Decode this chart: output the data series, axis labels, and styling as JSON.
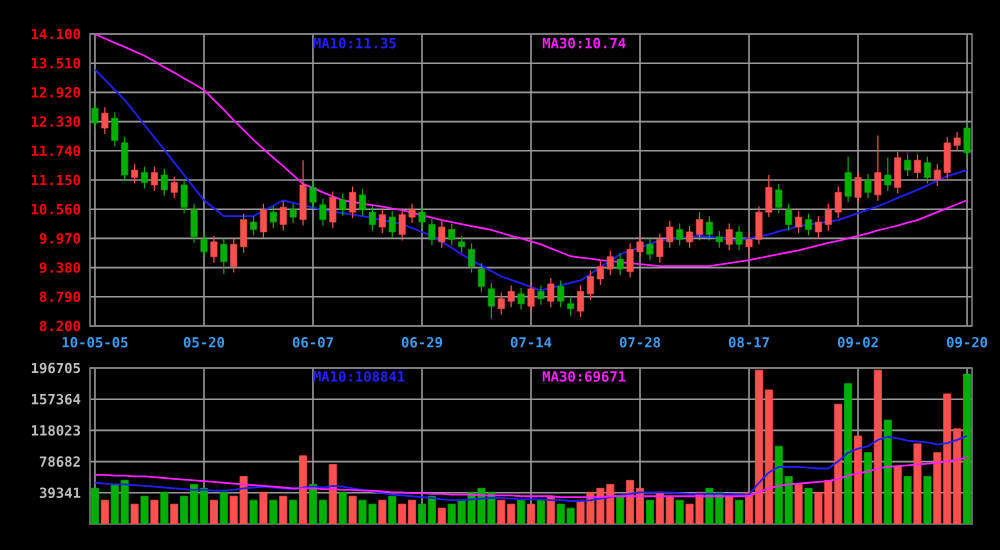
{
  "chart_data": [
    {
      "type": "candlestick",
      "categories": [
        "10-05-05",
        null,
        null,
        null,
        null,
        null,
        null,
        null,
        null,
        null,
        null,
        "05-20",
        null,
        null,
        null,
        null,
        null,
        null,
        null,
        null,
        null,
        null,
        "06-07",
        null,
        null,
        null,
        null,
        null,
        null,
        null,
        null,
        null,
        null,
        "06-29",
        null,
        null,
        null,
        null,
        null,
        null,
        null,
        null,
        null,
        null,
        "07-14",
        null,
        null,
        null,
        null,
        null,
        null,
        null,
        null,
        null,
        null,
        "07-28",
        null,
        null,
        null,
        null,
        null,
        null,
        null,
        null,
        null,
        null,
        "08-17",
        null,
        null,
        null,
        null,
        null,
        null,
        null,
        null,
        null,
        null,
        "09-02",
        null,
        null,
        null,
        null,
        null,
        null,
        null,
        null,
        null,
        null,
        "09-20"
      ],
      "ohlc": [
        [
          12.6,
          12.72,
          12.18,
          12.3
        ],
        [
          12.2,
          12.62,
          12.08,
          12.5
        ],
        [
          12.4,
          12.52,
          11.83,
          11.95
        ],
        [
          11.9,
          12.02,
          11.13,
          11.25
        ],
        [
          11.2,
          11.47,
          11.08,
          11.35
        ],
        [
          11.3,
          11.42,
          10.98,
          11.1
        ],
        [
          11.05,
          11.42,
          10.93,
          11.3
        ],
        [
          11.25,
          11.37,
          10.83,
          10.95
        ],
        [
          10.9,
          11.22,
          10.78,
          11.1
        ],
        [
          11.05,
          11.17,
          10.48,
          10.6
        ],
        [
          10.55,
          10.67,
          9.88,
          10.0
        ],
        [
          9.95,
          10.07,
          9.58,
          9.7
        ],
        [
          9.6,
          10.02,
          9.48,
          9.9
        ],
        [
          9.85,
          9.97,
          9.25,
          9.5
        ],
        [
          9.4,
          9.97,
          9.28,
          9.85
        ],
        [
          9.8,
          10.47,
          9.68,
          10.35
        ],
        [
          10.3,
          10.42,
          10.03,
          10.15
        ],
        [
          10.1,
          10.67,
          9.98,
          10.55
        ],
        [
          10.5,
          10.62,
          10.18,
          10.3
        ],
        [
          10.25,
          10.72,
          10.13,
          10.6
        ],
        [
          10.55,
          10.67,
          10.28,
          10.4
        ],
        [
          10.35,
          11.55,
          10.23,
          11.05
        ],
        [
          11.0,
          11.12,
          10.58,
          10.7
        ],
        [
          10.65,
          10.77,
          10.23,
          10.35
        ],
        [
          10.3,
          10.92,
          10.18,
          10.8
        ],
        [
          10.75,
          10.87,
          10.43,
          10.55
        ],
        [
          10.5,
          11.02,
          10.38,
          10.9
        ],
        [
          10.85,
          10.97,
          10.43,
          10.55
        ],
        [
          10.5,
          10.62,
          10.13,
          10.25
        ],
        [
          10.2,
          10.57,
          10.08,
          10.45
        ],
        [
          10.4,
          10.52,
          9.98,
          10.1
        ],
        [
          10.05,
          10.57,
          9.93,
          10.45
        ],
        [
          10.4,
          10.67,
          10.28,
          10.55
        ],
        [
          10.5,
          10.62,
          10.18,
          10.3
        ],
        [
          10.25,
          10.37,
          9.83,
          9.95
        ],
        [
          9.9,
          10.32,
          9.78,
          10.2
        ],
        [
          10.15,
          10.27,
          9.83,
          9.95
        ],
        [
          9.9,
          10.02,
          9.68,
          9.8
        ],
        [
          9.75,
          9.87,
          9.28,
          9.4
        ],
        [
          9.35,
          9.47,
          8.88,
          9.0
        ],
        [
          8.95,
          9.07,
          8.35,
          8.6
        ],
        [
          8.55,
          8.87,
          8.43,
          8.75
        ],
        [
          8.7,
          9.02,
          8.58,
          8.9
        ],
        [
          8.85,
          8.97,
          8.53,
          8.65
        ],
        [
          8.6,
          9.07,
          8.48,
          8.95
        ],
        [
          8.9,
          9.02,
          8.63,
          8.75
        ],
        [
          8.7,
          9.17,
          8.58,
          9.05
        ],
        [
          9.0,
          9.12,
          8.58,
          8.7
        ],
        [
          8.65,
          8.77,
          8.4,
          8.55
        ],
        [
          8.5,
          9.02,
          8.38,
          8.9
        ],
        [
          8.85,
          9.32,
          8.73,
          9.2
        ],
        [
          9.15,
          9.52,
          9.03,
          9.4
        ],
        [
          9.35,
          9.72,
          9.23,
          9.6
        ],
        [
          9.55,
          9.67,
          9.23,
          9.35
        ],
        [
          9.3,
          9.87,
          9.18,
          9.75
        ],
        [
          9.7,
          10.02,
          9.58,
          9.9
        ],
        [
          9.85,
          9.97,
          9.53,
          9.65
        ],
        [
          9.6,
          10.07,
          9.48,
          9.95
        ],
        [
          9.9,
          10.32,
          9.78,
          10.2
        ],
        [
          10.15,
          10.27,
          9.83,
          9.95
        ],
        [
          9.9,
          10.22,
          9.78,
          10.1
        ],
        [
          10.05,
          10.5,
          9.93,
          10.35
        ],
        [
          10.3,
          10.42,
          9.93,
          10.05
        ],
        [
          10.0,
          10.12,
          9.78,
          9.9
        ],
        [
          9.85,
          10.27,
          9.73,
          10.15
        ],
        [
          10.1,
          10.22,
          9.73,
          9.85
        ],
        [
          9.8,
          10.07,
          9.68,
          9.95
        ],
        [
          9.95,
          10.62,
          9.85,
          10.5
        ],
        [
          10.5,
          11.25,
          10.4,
          11.0
        ],
        [
          10.95,
          11.07,
          10.48,
          10.6
        ],
        [
          10.55,
          10.67,
          10.13,
          10.25
        ],
        [
          10.2,
          10.52,
          10.08,
          10.4
        ],
        [
          10.35,
          10.47,
          10.03,
          10.15
        ],
        [
          10.1,
          10.42,
          9.98,
          10.3
        ],
        [
          10.25,
          10.67,
          10.13,
          10.55
        ],
        [
          10.5,
          11.02,
          10.38,
          10.9
        ],
        [
          11.3,
          11.62,
          10.7,
          10.82
        ],
        [
          10.8,
          11.32,
          10.68,
          11.2
        ],
        [
          11.15,
          11.27,
          10.78,
          10.9
        ],
        [
          10.85,
          12.05,
          10.73,
          11.3
        ],
        [
          11.25,
          11.6,
          10.93,
          11.05
        ],
        [
          11.0,
          11.72,
          10.88,
          11.6
        ],
        [
          11.55,
          11.67,
          11.23,
          11.35
        ],
        [
          11.3,
          11.67,
          11.18,
          11.55
        ],
        [
          11.5,
          11.62,
          11.08,
          11.2
        ],
        [
          11.15,
          11.47,
          11.03,
          11.35
        ],
        [
          11.3,
          12.02,
          11.18,
          11.9
        ],
        [
          11.85,
          12.12,
          11.73,
          12.0
        ],
        [
          12.2,
          12.32,
          11.58,
          11.7
        ]
      ],
      "colors": [
        "#00b000",
        "#ff5050",
        "#00b000",
        "#00b000",
        "#ff5050",
        "#00b000",
        "#ff5050",
        "#00b000",
        "#ff5050",
        "#00b000",
        "#00b000",
        "#00b000",
        "#ff5050",
        "#00b000",
        "#ff5050",
        "#ff5050",
        "#00b000",
        "#ff5050",
        "#00b000",
        "#ff5050",
        "#00b000",
        "#ff5050",
        "#00b000",
        "#00b000",
        "#ff5050",
        "#00b000",
        "#ff5050",
        "#00b000",
        "#00b000",
        "#ff5050",
        "#00b000",
        "#ff5050",
        "#ff5050",
        "#00b000",
        "#00b000",
        "#ff5050",
        "#00b000",
        "#00b000",
        "#00b000",
        "#00b000",
        "#00b000",
        "#ff5050",
        "#ff5050",
        "#00b000",
        "#ff5050",
        "#00b000",
        "#ff5050",
        "#00b000",
        "#00b000",
        "#ff5050",
        "#ff5050",
        "#ff5050",
        "#ff5050",
        "#00b000",
        "#ff5050",
        "#ff5050",
        "#00b000",
        "#ff5050",
        "#ff5050",
        "#00b000",
        "#ff5050",
        "#ff5050",
        "#00b000",
        "#00b000",
        "#ff5050",
        "#00b000",
        "#ff5050",
        "#ff5050",
        "#ff5050",
        "#00b000",
        "#00b000",
        "#ff5050",
        "#00b000",
        "#ff5050",
        "#ff5050",
        "#ff5050",
        "#00b000",
        "#ff5050",
        "#00b000",
        "#ff5050",
        "#00b000",
        "#ff5050",
        "#00b000",
        "#ff5050",
        "#00b000",
        "#ff5050",
        "#ff5050",
        "#ff5050",
        "#00b000"
      ],
      "series": [
        {
          "type": "line",
          "name": "MA10:11.35",
          "color": "#2020ff",
          "values": [
            13.38,
            13.18,
            12.97,
            12.77,
            12.52,
            12.26,
            12.01,
            11.76,
            11.5,
            11.25,
            10.99,
            10.74,
            10.58,
            10.42,
            10.42,
            10.42,
            10.42,
            10.53,
            10.63,
            10.74,
            10.69,
            10.64,
            10.59,
            10.54,
            10.51,
            10.48,
            10.45,
            10.42,
            10.38,
            10.34,
            10.3,
            10.26,
            10.18,
            10.1,
            10.02,
            9.9,
            9.78,
            9.65,
            9.53,
            9.42,
            9.31,
            9.2,
            9.13,
            9.06,
            8.99,
            8.92,
            8.97,
            9.02,
            9.07,
            9.12,
            9.25,
            9.39,
            9.52,
            9.65,
            9.72,
            9.79,
            9.86,
            9.93,
            9.95,
            9.98,
            10.0,
            10.02,
            10.0,
            9.98,
            9.95,
            9.93,
            9.97,
            10.01,
            10.05,
            10.11,
            10.16,
            10.22,
            10.25,
            10.28,
            10.31,
            10.34,
            10.41,
            10.48,
            10.55,
            10.62,
            10.7,
            10.79,
            10.87,
            10.95,
            11.04,
            11.14,
            11.23,
            11.29,
            11.35
          ]
        },
        {
          "type": "line",
          "name": "MA30:10.74",
          "color": "#ff20ff",
          "values": [
            14.1,
            14.01,
            13.92,
            13.84,
            13.75,
            13.66,
            13.55,
            13.43,
            13.32,
            13.2,
            13.09,
            12.97,
            12.77,
            12.57,
            12.36,
            12.16,
            11.96,
            11.78,
            11.6,
            11.43,
            11.25,
            11.07,
            10.99,
            10.9,
            10.82,
            10.74,
            10.71,
            10.67,
            10.64,
            10.61,
            10.57,
            10.54,
            10.49,
            10.44,
            10.39,
            10.34,
            10.3,
            10.26,
            10.22,
            10.18,
            10.14,
            10.08,
            10.02,
            9.97,
            9.91,
            9.85,
            9.77,
            9.69,
            9.61,
            9.58,
            9.56,
            9.53,
            9.51,
            9.49,
            9.47,
            9.45,
            9.43,
            9.41,
            9.41,
            9.41,
            9.41,
            9.41,
            9.41,
            9.44,
            9.47,
            9.5,
            9.53,
            9.57,
            9.61,
            9.65,
            9.69,
            9.73,
            9.78,
            9.83,
            9.88,
            9.92,
            9.97,
            10.02,
            10.07,
            10.13,
            10.18,
            10.23,
            10.29,
            10.34,
            10.42,
            10.5,
            10.58,
            10.66,
            10.74
          ]
        }
      ],
      "ylim": [
        8.2,
        14.1
      ],
      "yticks": [
        {
          "value": 8.2,
          "label": "8.200"
        },
        {
          "value": 8.79,
          "label": "8.790"
        },
        {
          "value": 9.38,
          "label": "9.380"
        },
        {
          "value": 9.97,
          "label": "9.970"
        },
        {
          "value": 10.56,
          "label": "10.560"
        },
        {
          "value": 11.15,
          "label": "11.150"
        },
        {
          "value": 11.74,
          "label": "11.740"
        },
        {
          "value": 12.33,
          "label": "12.330"
        },
        {
          "value": 12.92,
          "label": "12.920"
        },
        {
          "value": 13.51,
          "label": "13.510"
        },
        {
          "value": 14.1,
          "label": "14.100"
        }
      ],
      "grid": true,
      "legend": "top"
    },
    {
      "type": "bar",
      "categories": [
        null,
        null,
        null,
        null,
        null,
        null,
        null,
        null,
        null,
        null,
        null,
        null,
        null,
        null,
        null,
        null,
        null,
        null,
        null,
        null,
        null,
        null,
        null,
        null,
        null,
        null,
        null,
        null,
        null,
        null,
        null,
        null,
        null,
        null,
        null,
        null,
        null,
        null,
        null,
        null,
        null,
        null,
        null,
        null,
        null,
        null,
        null,
        null,
        null,
        null,
        null,
        null,
        null,
        null,
        null,
        null,
        null,
        null,
        null,
        null,
        null,
        null,
        null,
        null,
        null,
        null,
        null,
        null,
        null,
        null,
        null,
        null,
        null,
        null,
        null,
        null,
        null,
        null,
        null,
        null,
        null,
        null,
        null,
        null,
        null,
        null,
        null,
        null,
        null
      ],
      "values": [
        45000,
        30000,
        50000,
        55000,
        25000,
        35000,
        30000,
        40000,
        25000,
        35000,
        50000,
        45000,
        30000,
        40000,
        35000,
        60000,
        30000,
        40000,
        30000,
        35000,
        30000,
        86000,
        50000,
        30000,
        75000,
        40000,
        35000,
        30000,
        25000,
        30000,
        35000,
        25000,
        30000,
        25000,
        35000,
        20000,
        25000,
        30000,
        40000,
        45000,
        40000,
        30000,
        25000,
        30000,
        25000,
        30000,
        35000,
        25000,
        20000,
        30000,
        40000,
        45000,
        50000,
        35000,
        55000,
        45000,
        30000,
        40000,
        35000,
        30000,
        25000,
        40000,
        45000,
        40000,
        35000,
        30000,
        40000,
        194000,
        169000,
        98000,
        60000,
        50000,
        45000,
        40000,
        55000,
        151000,
        177000,
        111000,
        90000,
        194000,
        131000,
        73000,
        60000,
        101000,
        60000,
        90000,
        164000,
        120000,
        189000
      ],
      "colors": [
        "#00b000",
        "#ff5050",
        "#00b000",
        "#00b000",
        "#ff5050",
        "#00b000",
        "#ff5050",
        "#00b000",
        "#ff5050",
        "#00b000",
        "#00b000",
        "#00b000",
        "#ff5050",
        "#00b000",
        "#ff5050",
        "#ff5050",
        "#00b000",
        "#ff5050",
        "#00b000",
        "#ff5050",
        "#00b000",
        "#ff5050",
        "#00b000",
        "#00b000",
        "#ff5050",
        "#00b000",
        "#ff5050",
        "#00b000",
        "#00b000",
        "#ff5050",
        "#00b000",
        "#ff5050",
        "#ff5050",
        "#00b000",
        "#00b000",
        "#ff5050",
        "#00b000",
        "#00b000",
        "#00b000",
        "#00b000",
        "#00b000",
        "#ff5050",
        "#ff5050",
        "#00b000",
        "#ff5050",
        "#00b000",
        "#ff5050",
        "#00b000",
        "#00b000",
        "#ff5050",
        "#ff5050",
        "#ff5050",
        "#ff5050",
        "#00b000",
        "#ff5050",
        "#ff5050",
        "#00b000",
        "#ff5050",
        "#ff5050",
        "#00b000",
        "#ff5050",
        "#ff5050",
        "#00b000",
        "#00b000",
        "#ff5050",
        "#00b000",
        "#ff5050",
        "#ff5050",
        "#ff5050",
        "#00b000",
        "#00b000",
        "#ff5050",
        "#00b000",
        "#ff5050",
        "#ff5050",
        "#ff5050",
        "#00b000",
        "#ff5050",
        "#00b000",
        "#ff5050",
        "#00b000",
        "#ff5050",
        "#00b000",
        "#ff5050",
        "#00b000",
        "#ff5050",
        "#ff5050",
        "#ff5050",
        "#00b000"
      ],
      "series": [
        {
          "type": "line",
          "name": "MA10:108841",
          "color": "#2020ff",
          "values": [
            52000,
            51000,
            50000,
            50000,
            49000,
            48000,
            47000,
            46000,
            45000,
            44000,
            43000,
            43000,
            42000,
            42000,
            43000,
            45000,
            46000,
            47000,
            46000,
            45000,
            44000,
            46000,
            47000,
            46000,
            48000,
            47000,
            45000,
            43000,
            41000,
            39000,
            37000,
            36000,
            35000,
            34000,
            33000,
            31000,
            30000,
            30000,
            31000,
            32000,
            33000,
            33000,
            32000,
            31000,
            31000,
            31000,
            30000,
            30000,
            29000,
            29000,
            30000,
            32000,
            34000,
            36000,
            38000,
            40000,
            40000,
            40000,
            40000,
            39000,
            38000,
            38000,
            38000,
            38000,
            38000,
            37000,
            37000,
            52000,
            65000,
            72000,
            72000,
            72000,
            71000,
            70000,
            70000,
            79000,
            90000,
            95000,
            98000,
            106000,
            110000,
            108000,
            105000,
            104000,
            103000,
            100000,
            102000,
            106000,
            111000
          ]
        },
        {
          "type": "line",
          "name": "MA30:69671",
          "color": "#ff20ff",
          "values": [
            62000,
            62000,
            61000,
            61000,
            60000,
            60000,
            59000,
            58000,
            57000,
            56000,
            55000,
            54000,
            53000,
            52000,
            51000,
            50000,
            49000,
            48000,
            47000,
            46000,
            45000,
            45000,
            45000,
            44000,
            44000,
            43000,
            43000,
            42000,
            42000,
            41000,
            40000,
            40000,
            39000,
            39000,
            38000,
            38000,
            37000,
            37000,
            37000,
            36000,
            36000,
            36000,
            36000,
            35000,
            35000,
            35000,
            35000,
            34000,
            34000,
            34000,
            34000,
            34000,
            35000,
            35000,
            35000,
            35000,
            35000,
            35000,
            35000,
            35000,
            35000,
            35000,
            35000,
            35000,
            35000,
            35000,
            35000,
            40000,
            45000,
            48000,
            50000,
            51000,
            52000,
            53000,
            54000,
            57000,
            61000,
            64000,
            66000,
            70000,
            72000,
            73000,
            74000,
            75000,
            76000,
            77000,
            79000,
            81000,
            84000
          ]
        }
      ],
      "ylim": [
        0,
        196705
      ],
      "yticks": [
        39341,
        78682,
        118023,
        157364,
        196705
      ],
      "grid": true,
      "legend": "top",
      "tick_labels": "y"
    }
  ]
}
